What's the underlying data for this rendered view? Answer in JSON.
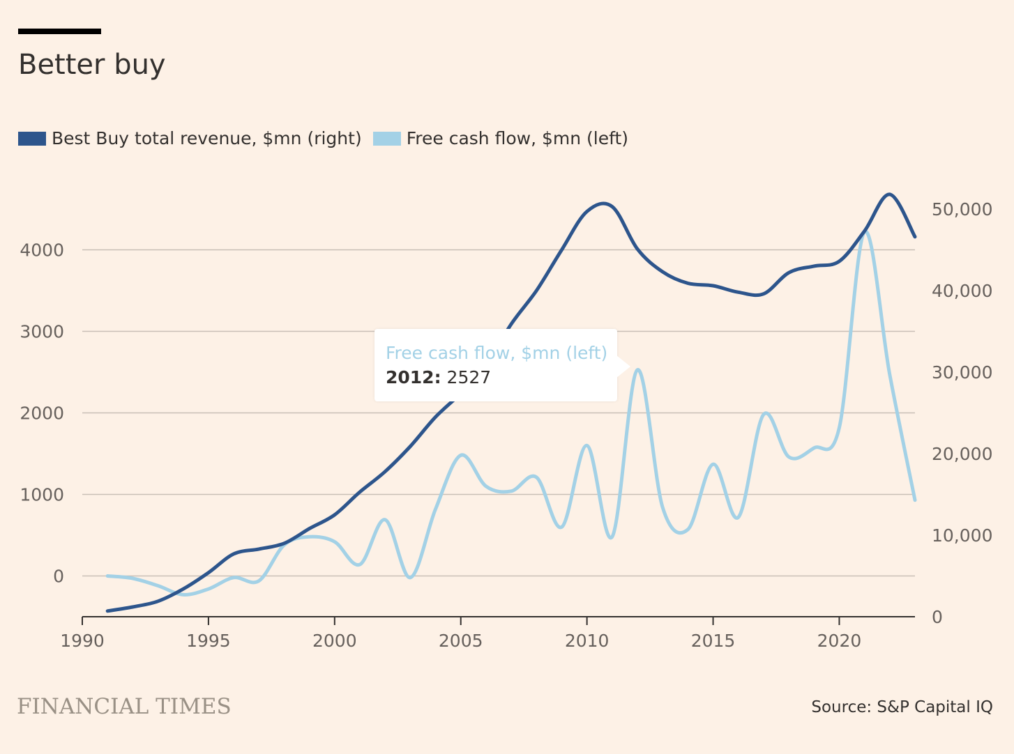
{
  "chart": {
    "title": "Better buy",
    "source": "Source: S&P Capital IQ",
    "publisher": "FINANCIAL TIMES",
    "tooltip": {
      "series": "Free cash flow, $mn (left)",
      "year": "2012",
      "value": "2527"
    }
  },
  "colors": {
    "revenue": "#2d558c",
    "fcf": "#a3d1e6",
    "gridline": "#c8bfb6",
    "axis": "#33302e",
    "background": "#fdf1e6"
  },
  "chart_data": {
    "type": "line",
    "title": "Better buy",
    "xlabel": "",
    "x_ticks": [
      1990,
      1995,
      2000,
      2005,
      2010,
      2015,
      2020
    ],
    "xlim": [
      1990,
      2023
    ],
    "y_left": {
      "label": "",
      "ticks": [
        0,
        1000,
        2000,
        3000,
        4000
      ],
      "tick_labels": [
        "0",
        "1000",
        "2000",
        "3000",
        "4000"
      ],
      "lim": [
        -500,
        4500
      ]
    },
    "y_right": {
      "label": "",
      "ticks": [
        0,
        10000,
        20000,
        30000,
        40000,
        50000
      ],
      "tick_labels": [
        "0",
        "10,000",
        "20,000",
        "30,000",
        "40,000",
        "50,000"
      ],
      "lim": [
        0,
        50000
      ]
    },
    "grid": true,
    "legend_position": "top-left",
    "x": [
      1991,
      1992,
      1993,
      1994,
      1995,
      1996,
      1997,
      1998,
      1999,
      2000,
      2001,
      2002,
      2003,
      2004,
      2005,
      2006,
      2007,
      2008,
      2009,
      2010,
      2011,
      2012,
      2013,
      2014,
      2015,
      2016,
      2017,
      2018,
      2019,
      2020,
      2021,
      2022,
      2023
    ],
    "series": [
      {
        "name": "Best Buy total revenue, $mn (right)",
        "axis": "right",
        "values": [
          700,
          1200,
          1900,
          3400,
          5400,
          7700,
          8300,
          9000,
          10800,
          12500,
          15300,
          17800,
          20900,
          24500,
          27400,
          30800,
          35900,
          40000,
          45000,
          49700,
          50300,
          45100,
          42300,
          40900,
          40600,
          39800,
          39600,
          42200,
          43000,
          43600,
          47300,
          51800,
          46600
        ]
      },
      {
        "name": "Free cash flow, $mn (left)",
        "axis": "left",
        "values": [
          0,
          -30,
          -120,
          -230,
          -160,
          -20,
          -60,
          380,
          480,
          420,
          140,
          690,
          -20,
          820,
          1480,
          1100,
          1040,
          1210,
          600,
          1600,
          480,
          2527,
          840,
          570,
          1370,
          720,
          1980,
          1460,
          1570,
          1820,
          4220,
          2470,
          930
        ]
      }
    ]
  }
}
